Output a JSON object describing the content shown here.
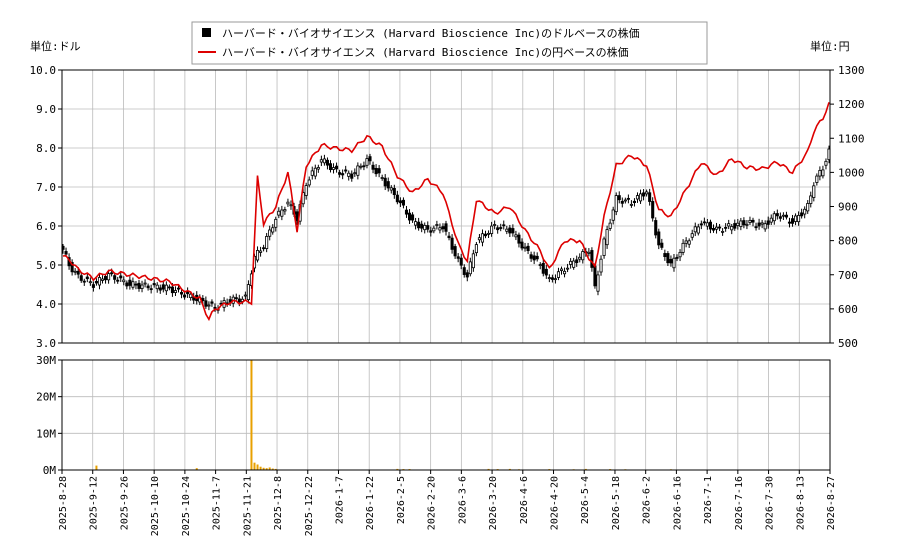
{
  "legend": {
    "usd_label": "ハーバード・バイオサイエンス (Harvard Bioscience Inc)のドルベースの株価",
    "jpy_label": "ハーバード・バイオサイエンス (Harvard Bioscience Inc)の円ベースの株価"
  },
  "unit_left": "単位:ドル",
  "unit_right": "単位:円",
  "colors": {
    "usd": "#000000",
    "jpy": "#dd0000",
    "volume": "#e8a000",
    "grid": "#bbbbbb"
  },
  "chart_data": {
    "type": "line",
    "price_axis_usd": {
      "range": [
        3.0,
        10.0
      ],
      "ticks": [
        "3.0",
        "4.0",
        "5.0",
        "6.0",
        "7.0",
        "8.0",
        "9.0",
        "10.0"
      ]
    },
    "price_axis_jpy": {
      "range": [
        500,
        1300
      ],
      "ticks": [
        "500",
        "600",
        "700",
        "800",
        "900",
        "1000",
        "1100",
        "1200",
        "1300"
      ]
    },
    "volume_axis": {
      "range": [
        0,
        30000000
      ],
      "ticks": [
        "0M",
        "10M",
        "20M",
        "30M"
      ]
    },
    "x_labels": [
      "2025-8-28",
      "2025-9-12",
      "2025-9-26",
      "2025-10-10",
      "2025-10-24",
      "2025-11-7",
      "2025-11-21",
      "2025-12-8",
      "2025-12-22",
      "2026-1-7",
      "2026-1-22",
      "2026-2-5",
      "2026-2-20",
      "2026-3-6",
      "2026-3-20",
      "2026-4-6",
      "2026-4-20",
      "2026-5-4",
      "2026-5-18",
      "2026-6-2",
      "2026-6-16",
      "2026-7-1",
      "2026-7-16",
      "2026-7-30",
      "2026-8-13",
      "2026-8-27"
    ],
    "usd_close_anchors": [
      [
        0,
        5.4
      ],
      [
        2,
        5.0
      ],
      [
        5,
        4.7
      ],
      [
        10,
        4.5
      ],
      [
        15,
        4.75
      ],
      [
        22,
        4.5
      ],
      [
        35,
        4.4
      ],
      [
        45,
        4.1
      ],
      [
        50,
        3.9
      ],
      [
        55,
        4.1
      ],
      [
        60,
        4.15
      ],
      [
        63,
        5.2
      ],
      [
        66,
        5.5
      ],
      [
        70,
        6.2
      ],
      [
        74,
        6.6
      ],
      [
        77,
        6.2
      ],
      [
        80,
        7.1
      ],
      [
        85,
        7.7
      ],
      [
        90,
        7.4
      ],
      [
        95,
        7.3
      ],
      [
        100,
        7.7
      ],
      [
        105,
        7.2
      ],
      [
        110,
        6.7
      ],
      [
        115,
        6.1
      ],
      [
        120,
        5.9
      ],
      [
        125,
        6.0
      ],
      [
        130,
        5.1
      ],
      [
        133,
        4.7
      ],
      [
        136,
        5.6
      ],
      [
        142,
        6.0
      ],
      [
        147,
        5.9
      ],
      [
        152,
        5.4
      ],
      [
        157,
        5.0
      ],
      [
        160,
        4.6
      ],
      [
        165,
        4.9
      ],
      [
        170,
        5.2
      ],
      [
        173,
        5.4
      ],
      [
        175,
        4.4
      ],
      [
        178,
        5.6
      ],
      [
        182,
        6.7
      ],
      [
        187,
        6.6
      ],
      [
        192,
        6.9
      ],
      [
        196,
        5.5
      ],
      [
        200,
        5.0
      ],
      [
        205,
        5.6
      ],
      [
        210,
        6.1
      ],
      [
        215,
        5.9
      ],
      [
        220,
        6.0
      ],
      [
        225,
        6.1
      ],
      [
        230,
        6.0
      ],
      [
        235,
        6.3
      ],
      [
        240,
        6.1
      ],
      [
        245,
        6.5
      ],
      [
        247,
        7.1
      ],
      [
        250,
        7.5
      ],
      [
        252,
        7.9
      ]
    ],
    "jpy_close_anchors": [
      [
        0,
        755
      ],
      [
        2,
        745
      ],
      [
        5,
        715
      ],
      [
        10,
        690
      ],
      [
        15,
        710
      ],
      [
        22,
        700
      ],
      [
        35,
        680
      ],
      [
        45,
        630
      ],
      [
        48,
        570
      ],
      [
        50,
        600
      ],
      [
        55,
        620
      ],
      [
        62,
        620
      ],
      [
        64,
        985
      ],
      [
        66,
        850
      ],
      [
        70,
        900
      ],
      [
        74,
        1000
      ],
      [
        77,
        830
      ],
      [
        80,
        1020
      ],
      [
        85,
        1080
      ],
      [
        90,
        1070
      ],
      [
        95,
        1065
      ],
      [
        100,
        1105
      ],
      [
        105,
        1075
      ],
      [
        110,
        990
      ],
      [
        115,
        940
      ],
      [
        120,
        980
      ],
      [
        125,
        940
      ],
      [
        130,
        790
      ],
      [
        133,
        740
      ],
      [
        136,
        920
      ],
      [
        142,
        880
      ],
      [
        147,
        900
      ],
      [
        152,
        830
      ],
      [
        157,
        770
      ],
      [
        160,
        715
      ],
      [
        165,
        800
      ],
      [
        170,
        800
      ],
      [
        173,
        750
      ],
      [
        175,
        720
      ],
      [
        178,
        870
      ],
      [
        182,
        1020
      ],
      [
        187,
        1050
      ],
      [
        192,
        1020
      ],
      [
        196,
        890
      ],
      [
        200,
        870
      ],
      [
        205,
        950
      ],
      [
        210,
        1030
      ],
      [
        215,
        990
      ],
      [
        220,
        1040
      ],
      [
        225,
        1015
      ],
      [
        230,
        1010
      ],
      [
        235,
        1030
      ],
      [
        240,
        1000
      ],
      [
        245,
        1060
      ],
      [
        247,
        1120
      ],
      [
        250,
        1160
      ],
      [
        252,
        1200
      ]
    ],
    "volume_spikes": [
      [
        11,
        1200000
      ],
      [
        44,
        500000
      ],
      [
        62,
        30000000
      ],
      [
        63,
        2000000
      ],
      [
        64,
        1500000
      ],
      [
        65,
        900000
      ],
      [
        66,
        600000
      ],
      [
        67,
        500000
      ],
      [
        68,
        700000
      ],
      [
        69,
        400000
      ],
      [
        70,
        300000
      ],
      [
        110,
        300000
      ],
      [
        112,
        250000
      ],
      [
        114,
        250000
      ],
      [
        140,
        300000
      ],
      [
        143,
        250000
      ],
      [
        147,
        300000
      ],
      [
        150,
        200000
      ],
      [
        160,
        250000
      ],
      [
        168,
        200000
      ],
      [
        172,
        300000
      ],
      [
        180,
        250000
      ],
      [
        185,
        200000
      ],
      [
        200,
        200000
      ]
    ]
  }
}
